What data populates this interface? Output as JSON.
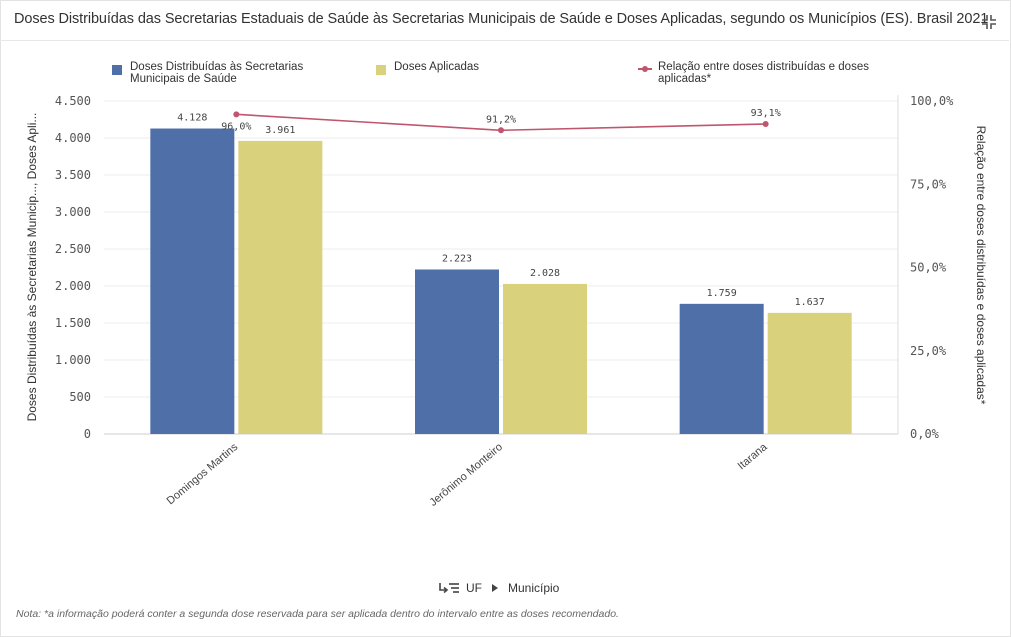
{
  "header": {
    "title": "Doses Distribuídas das Secretarias Estaduais de Saúde às Secretarias Municipais de Saúde e Doses Aplicadas, segundo os Municípios (ES). Brasil 2021",
    "collapse_icon": "collapse-icon"
  },
  "legend": {
    "items": [
      {
        "label": "Doses Distribuídas às Secretarias Municipais de Saúde",
        "color": "#4e6fa8"
      },
      {
        "label": "Doses Aplicadas",
        "color": "#d9d17c"
      },
      {
        "label": "Relação entre doses distribuídas e doses aplicadas*",
        "color": "#c0566e"
      }
    ]
  },
  "chart_data": {
    "type": "bar",
    "categories": [
      "Domingos Martins",
      "Jerônimo Monteiro",
      "Itarana"
    ],
    "series": [
      {
        "name": "Doses Distribuídas às Secretarias Municipais de Saúde",
        "type": "bar",
        "axis": "left",
        "color": "#4e6fa8",
        "values": [
          4128,
          2223,
          1759
        ],
        "labels": [
          "4.128",
          "2.223",
          "1.759"
        ]
      },
      {
        "name": "Doses Aplicadas",
        "type": "bar",
        "axis": "left",
        "color": "#d9d17c",
        "values": [
          3961,
          2028,
          1637
        ],
        "labels": [
          "3.961",
          "2.028",
          "1.637"
        ]
      },
      {
        "name": "Relação entre doses distribuídas e doses aplicadas*",
        "type": "line",
        "axis": "right",
        "color": "#c0566e",
        "values": [
          96.0,
          91.2,
          93.1
        ],
        "labels": [
          "96,0%",
          "91,2%",
          "93,1%"
        ]
      }
    ],
    "y_left": {
      "label": "Doses Distribuídas às Secretarias Municip..., Doses Apli...",
      "ylim": [
        0,
        4500
      ],
      "ticks": [
        0,
        500,
        1000,
        1500,
        2000,
        2500,
        3000,
        3500,
        4000,
        4500
      ],
      "tick_labels": [
        "0",
        "500",
        "1.000",
        "1.500",
        "2.000",
        "2.500",
        "3.000",
        "3.500",
        "4.000",
        "4.500"
      ]
    },
    "y_right": {
      "label": "Relação entre doses distribuídas e doses aplicadas*",
      "ylim": [
        0,
        100
      ],
      "ticks": [
        0,
        25,
        50,
        75,
        100
      ],
      "tick_labels": [
        "0,0%",
        "25,0%",
        "50,0%",
        "75,0%",
        "100,0%"
      ]
    },
    "grid": true,
    "legend_position": "top"
  },
  "drill": {
    "icon": "drill-down-icon",
    "level1": "UF",
    "level2": "Município"
  },
  "note": "Nota: *a informação poderá conter a segunda dose reservada para ser aplicada dentro do intervalo entre as doses recomendado."
}
